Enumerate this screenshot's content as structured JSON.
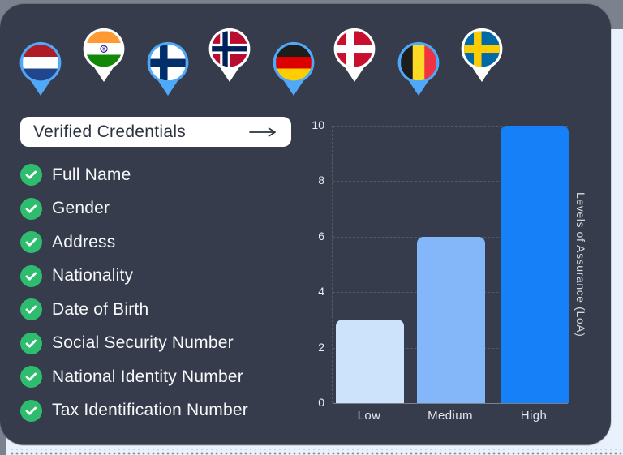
{
  "header": {
    "label": "Verified Credentials",
    "arrow_icon": "long-right-arrow",
    "pill_background": "#ffffff",
    "pill_text_color": "#2d3240"
  },
  "credentials": {
    "check_color": "#2ebd6e",
    "items": [
      "Full Name",
      "Gender",
      "Address",
      "Nationality",
      "Date of Birth",
      "Social Security Number",
      "National Identity Number",
      "Tax Identification Number"
    ]
  },
  "flag_pins": [
    {
      "country": "netherlands",
      "pin_color": "#4fa9f8",
      "flag": {
        "type": "hstripes",
        "colors": [
          "#AE1C28",
          "#FFFFFF",
          "#21468B"
        ]
      }
    },
    {
      "country": "india",
      "pin_color": "#FFFFFF",
      "flag": {
        "type": "hstripes",
        "colors": [
          "#FF9933",
          "#FFFFFF",
          "#138808"
        ],
        "emblem": "ashoka-chakra",
        "emblem_color": "#000080"
      }
    },
    {
      "country": "finland",
      "pin_color": "#4fa9f8",
      "flag": {
        "type": "nordic-cross",
        "background": "#FFFFFF",
        "cross": "#002F6C"
      }
    },
    {
      "country": "norway",
      "pin_color": "#FFFFFF",
      "flag": {
        "type": "nordic-cross-double",
        "background": "#BA0C2F",
        "outer_cross": "#FFFFFF",
        "inner_cross": "#00205B"
      }
    },
    {
      "country": "germany",
      "pin_color": "#4fa9f8",
      "flag": {
        "type": "hstripes",
        "colors": [
          "#1D1D1B",
          "#DD0000",
          "#FFCE00"
        ]
      }
    },
    {
      "country": "denmark",
      "pin_color": "#FFFFFF",
      "flag": {
        "type": "nordic-cross",
        "background": "#C8102E",
        "cross": "#FFFFFF"
      }
    },
    {
      "country": "belgium",
      "pin_color": "#4fa9f8",
      "flag": {
        "type": "vstripes",
        "colors": [
          "#1D1D1B",
          "#FDDA24",
          "#EF3340"
        ]
      }
    },
    {
      "country": "sweden",
      "pin_color": "#FFFFFF",
      "flag": {
        "type": "nordic-cross",
        "background": "#006AA7",
        "cross": "#FECC02"
      }
    }
  ],
  "chart_data": {
    "type": "bar",
    "categories": [
      "Low",
      "Medium",
      "High"
    ],
    "values": [
      3,
      6,
      10
    ],
    "bar_colors": [
      "#cde2fb",
      "#84b7fa",
      "#1680f8"
    ],
    "title": "",
    "xlabel": "",
    "ylabel": "Levels of Assurance (LoA)",
    "ylabel_position": "right",
    "ylim": [
      0,
      10
    ],
    "yticks": [
      0,
      2,
      4,
      6,
      8,
      10
    ],
    "grid": "horizontal-dashed"
  },
  "theme": {
    "card_background": "#363c4b",
    "outer_background": "#e9f1fc",
    "text_light": "#f7f8fa"
  }
}
